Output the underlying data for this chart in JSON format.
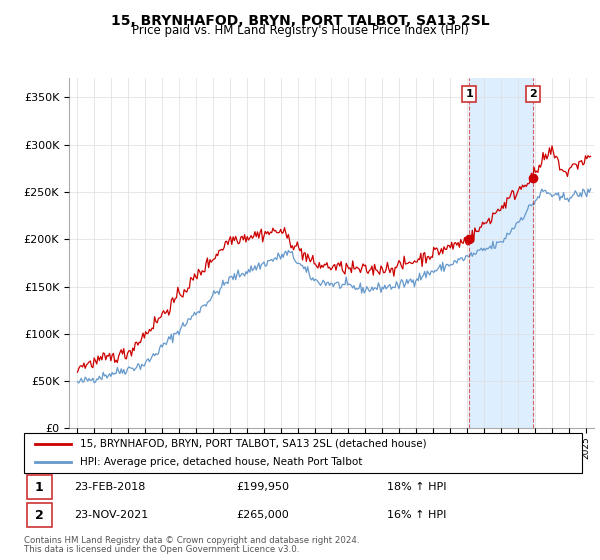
{
  "title": "15, BRYNHAFOD, BRYN, PORT TALBOT, SA13 2SL",
  "subtitle": "Price paid vs. HM Land Registry's House Price Index (HPI)",
  "sale1_date": "23-FEB-2018",
  "sale1_price": 199950,
  "sale1_label": "18% ↑ HPI",
  "sale2_date": "23-NOV-2021",
  "sale2_price": 265000,
  "sale2_label": "16% ↑ HPI",
  "legend_line1": "15, BRYNHAFOD, BRYN, PORT TALBOT, SA13 2SL (detached house)",
  "legend_line2": "HPI: Average price, detached house, Neath Port Talbot",
  "footer1": "Contains HM Land Registry data © Crown copyright and database right 2024.",
  "footer2": "This data is licensed under the Open Government Licence v3.0.",
  "ylim": [
    0,
    370000
  ],
  "xlim_start": 1994.5,
  "xlim_end": 2025.5,
  "sale1_year": 2018.13,
  "sale2_year": 2021.9,
  "red_color": "#cc0000",
  "blue_color": "#6699cc",
  "shade_color": "#ddeeff",
  "grid_color": "#dddddd",
  "bg_color": "#ffffff",
  "annotation_box_color": "#cc3333"
}
